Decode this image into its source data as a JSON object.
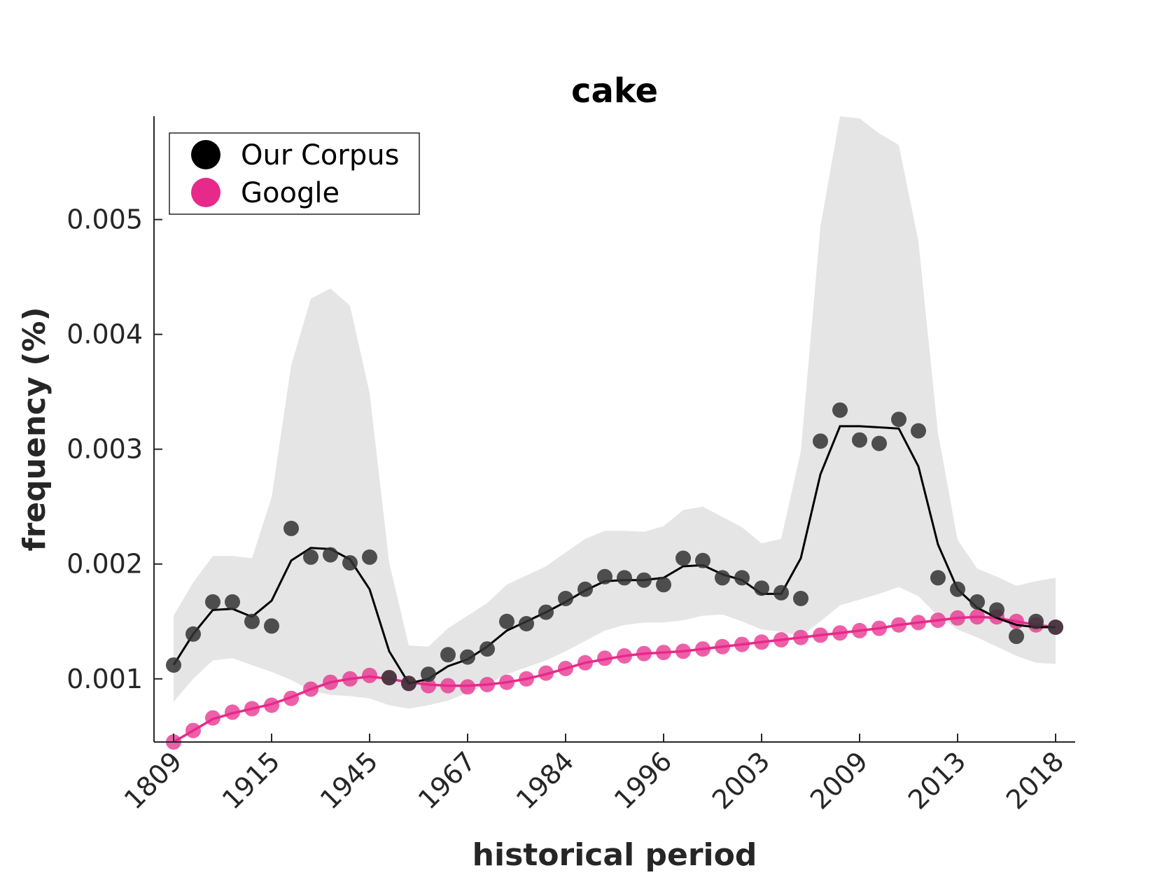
{
  "chart_data": {
    "type": "scatter",
    "title": "cake",
    "xlabel": "historical period",
    "ylabel": "frequency (%)",
    "ylim": [
      0.00045,
      0.0059
    ],
    "y_ticks": [
      "0.001",
      "0.002",
      "0.003",
      "0.004",
      "0.005"
    ],
    "y_tick_values": [
      0.001,
      0.002,
      0.003,
      0.004,
      0.005
    ],
    "x_tick_labels": [
      "1809",
      "1915",
      "1945",
      "1967",
      "1984",
      "1996",
      "2003",
      "2009",
      "2013",
      "2018"
    ],
    "x_tick_index": [
      0,
      5,
      10,
      15,
      20,
      25,
      30,
      35,
      40,
      45
    ],
    "legend_position": "top-left",
    "colors": {
      "corpus": "#000000",
      "google": "#e7298a",
      "band": "#e5e5e5"
    },
    "series": [
      {
        "name": "Our Corpus",
        "points": [
          0.00112,
          0.00139,
          0.00167,
          0.00167,
          0.0015,
          0.00146,
          0.00231,
          0.00206,
          0.00208,
          0.00201,
          0.00206,
          0.00101,
          0.00096,
          0.00104,
          0.00121,
          0.00119,
          0.00126,
          0.0015,
          0.00148,
          0.00158,
          0.0017,
          0.00178,
          0.00189,
          0.00188,
          0.00186,
          0.00182,
          0.00205,
          0.00203,
          0.00188,
          0.00188,
          0.00179,
          0.00175,
          0.0017,
          0.00307,
          0.00334,
          0.00308,
          0.00305,
          0.00326,
          0.00316,
          0.00188,
          0.00178,
          0.00167,
          0.0016,
          0.00137,
          0.0015,
          0.00145
        ],
        "trend": [
          0.00112,
          0.00139,
          0.0016,
          0.00161,
          0.00154,
          0.00168,
          0.00203,
          0.00214,
          0.00213,
          0.00204,
          0.00178,
          0.00124,
          0.00096,
          0.001,
          0.00111,
          0.00117,
          0.00128,
          0.00142,
          0.0015,
          0.00158,
          0.00167,
          0.00177,
          0.00185,
          0.00186,
          0.00186,
          0.00188,
          0.00198,
          0.00199,
          0.00191,
          0.00186,
          0.00174,
          0.00174,
          0.00205,
          0.00278,
          0.0032,
          0.0032,
          0.00319,
          0.00318,
          0.00285,
          0.00217,
          0.00178,
          0.00162,
          0.00153,
          0.00147,
          0.00145,
          0.00145
        ],
        "band_upper": [
          0.00155,
          0.00184,
          0.00207,
          0.00207,
          0.00205,
          0.00258,
          0.00373,
          0.00431,
          0.0044,
          0.00425,
          0.00349,
          0.00201,
          0.00129,
          0.00128,
          0.00144,
          0.00155,
          0.00166,
          0.00182,
          0.0019,
          0.00198,
          0.0021,
          0.00222,
          0.00229,
          0.00229,
          0.00228,
          0.00233,
          0.00247,
          0.0025,
          0.00241,
          0.00232,
          0.00218,
          0.00222,
          0.00298,
          0.00494,
          0.0059,
          0.00588,
          0.00575,
          0.00565,
          0.00481,
          0.00314,
          0.00221,
          0.00196,
          0.00189,
          0.00181,
          0.00185,
          0.00188
        ],
        "band_lower": [
          0.0008,
          0.001,
          0.00116,
          0.00118,
          0.00112,
          0.00106,
          0.00099,
          0.0009,
          0.00086,
          0.00085,
          0.00083,
          0.00077,
          0.00074,
          0.00077,
          0.00081,
          0.00088,
          0.00095,
          0.00104,
          0.0011,
          0.00116,
          0.00124,
          0.00133,
          0.00142,
          0.00147,
          0.00149,
          0.00149,
          0.00151,
          0.00155,
          0.00156,
          0.0015,
          0.00143,
          0.00141,
          0.00137,
          0.0015,
          0.00164,
          0.00169,
          0.00174,
          0.0018,
          0.00172,
          0.00155,
          0.00143,
          0.00136,
          0.00128,
          0.0012,
          0.00114,
          0.00113
        ]
      },
      {
        "name": "Google",
        "points": [
          0.00044,
          0.00055,
          0.00066,
          0.00071,
          0.00074,
          0.00077,
          0.00083,
          0.00091,
          0.00097,
          0.001,
          0.00103,
          0.00101,
          0.00096,
          0.00094,
          0.00094,
          0.00093,
          0.00095,
          0.00097,
          0.001,
          0.00105,
          0.00109,
          0.00114,
          0.00118,
          0.0012,
          0.00122,
          0.00123,
          0.00124,
          0.00126,
          0.00128,
          0.0013,
          0.00132,
          0.00134,
          0.00136,
          0.00138,
          0.0014,
          0.00142,
          0.00144,
          0.00147,
          0.00149,
          0.00151,
          0.00153,
          0.00154,
          0.00154,
          0.0015,
          0.00147,
          0.00145
        ],
        "trend": [
          0.00044,
          0.00055,
          0.00065,
          0.0007,
          0.00074,
          0.00078,
          0.00084,
          0.00091,
          0.00097,
          0.001,
          0.00102,
          0.001,
          0.00097,
          0.00095,
          0.00094,
          0.00094,
          0.00095,
          0.00097,
          0.001,
          0.00104,
          0.00109,
          0.00114,
          0.00117,
          0.0012,
          0.00122,
          0.00123,
          0.00124,
          0.00126,
          0.00128,
          0.0013,
          0.00132,
          0.00134,
          0.00136,
          0.00138,
          0.0014,
          0.00142,
          0.00144,
          0.00147,
          0.00149,
          0.00151,
          0.00153,
          0.00154,
          0.00153,
          0.0015,
          0.00147,
          0.00145
        ]
      }
    ]
  }
}
